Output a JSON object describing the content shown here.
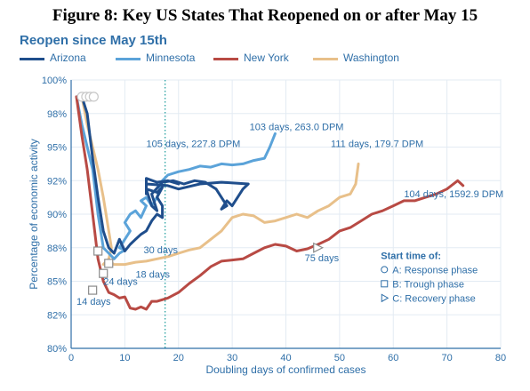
{
  "figure_title": "Figure 8: Key US States That Reopened on or after May 15",
  "chart_data": {
    "type": "line",
    "subtitle": "Reopen since May 15th",
    "xlabel": "Doubling days of confirmed cases",
    "ylabel": "Percentage of economic activity",
    "xlim": [
      0,
      80
    ],
    "ylim": [
      80,
      100
    ],
    "xticks": [
      0,
      10,
      20,
      30,
      40,
      50,
      60,
      70,
      80
    ],
    "yticks": [
      80,
      82,
      85,
      88,
      90,
      92,
      95,
      98,
      100
    ],
    "yticklabels": [
      "80%",
      "82%",
      "85%",
      "88%",
      "90%",
      "92%",
      "95%",
      "98%",
      "100%"
    ],
    "grid": true,
    "reference_line_x": 17.5,
    "series": [
      {
        "name": "Arizona",
        "color": "#1f4e8c",
        "points": [
          [
            2,
            99
          ],
          [
            3,
            98
          ],
          [
            3.5,
            96
          ],
          [
            4,
            94
          ],
          [
            5,
            91
          ],
          [
            6,
            89
          ],
          [
            7,
            88
          ],
          [
            8,
            87.5
          ],
          [
            9,
            88.5
          ],
          [
            10,
            87.7
          ],
          [
            11,
            88.2
          ],
          [
            12,
            88.5
          ],
          [
            13,
            88.8
          ],
          [
            14,
            89
          ],
          [
            15,
            89.6
          ],
          [
            16,
            90
          ],
          [
            17,
            89.8
          ],
          [
            17,
            90.5
          ],
          [
            16,
            91
          ],
          [
            17,
            91.6
          ],
          [
            16,
            91.3
          ],
          [
            14,
            91.5
          ],
          [
            15,
            90.5
          ],
          [
            16,
            90.2
          ],
          [
            15,
            91.2
          ],
          [
            17,
            91.9
          ],
          [
            19,
            92
          ],
          [
            21,
            91.8
          ],
          [
            23,
            92
          ],
          [
            25,
            91.9
          ],
          [
            27,
            91.5
          ],
          [
            28,
            91
          ],
          [
            29,
            90.5
          ],
          [
            28,
            90.3
          ],
          [
            29,
            90.8
          ],
          [
            30,
            90.5
          ],
          [
            31,
            91
          ],
          [
            32,
            91.5
          ],
          [
            33,
            91.8
          ],
          [
            28,
            91.9
          ],
          [
            24,
            91.8
          ],
          [
            20,
            91.5
          ],
          [
            18,
            91.7
          ],
          [
            14,
            91.8
          ],
          [
            14,
            92
          ],
          [
            14,
            91.2
          ],
          [
            14,
            92.2
          ],
          [
            16,
            91.9
          ],
          [
            18,
            92
          ],
          [
            20,
            91.8
          ]
        ],
        "end_label": "105 days, 227.8 DPM",
        "marker_days": "30 days",
        "marker": [
          5,
          87.7
        ]
      },
      {
        "name": "Minnesota",
        "color": "#5ba3d9",
        "points": [
          [
            1,
            99
          ],
          [
            2,
            97
          ],
          [
            3,
            95
          ],
          [
            4,
            93
          ],
          [
            5,
            90
          ],
          [
            6,
            88
          ],
          [
            7,
            87.5
          ],
          [
            8,
            87
          ],
          [
            9,
            87.5
          ],
          [
            10,
            87.8
          ],
          [
            9,
            88
          ],
          [
            10,
            88.5
          ],
          [
            11,
            89
          ],
          [
            10,
            89.5
          ],
          [
            11,
            90
          ],
          [
            12,
            90.2
          ],
          [
            13,
            89.8
          ],
          [
            14,
            90.5
          ],
          [
            13,
            90.8
          ],
          [
            14,
            91
          ],
          [
            15,
            90.5
          ],
          [
            16,
            91
          ],
          [
            17,
            92
          ],
          [
            18,
            92.5
          ],
          [
            20,
            92.8
          ],
          [
            22,
            93
          ],
          [
            24,
            93.3
          ],
          [
            26,
            93.2
          ],
          [
            28,
            93.5
          ],
          [
            30,
            93.4
          ],
          [
            32,
            93.5
          ],
          [
            34,
            93.8
          ],
          [
            36,
            94
          ],
          [
            37,
            95
          ],
          [
            38,
            96.2
          ]
        ],
        "end_label": "103 days, 263.0 DPM",
        "marker_days": "18 days",
        "marker": [
          7,
          86.6
        ]
      },
      {
        "name": "New York",
        "color": "#b84a44",
        "points": [
          [
            1,
            99
          ],
          [
            2,
            96
          ],
          [
            3,
            93
          ],
          [
            4,
            90
          ],
          [
            5,
            87
          ],
          [
            6,
            85
          ],
          [
            7,
            84
          ],
          [
            8,
            83.8
          ],
          [
            9,
            83.5
          ],
          [
            10,
            83.6
          ],
          [
            11,
            82.6
          ],
          [
            12,
            82.5
          ],
          [
            13,
            82.7
          ],
          [
            14,
            82.5
          ],
          [
            15,
            83.2
          ],
          [
            16,
            83.2
          ],
          [
            18,
            83.5
          ],
          [
            20,
            84
          ],
          [
            22,
            84.8
          ],
          [
            24,
            85.5
          ],
          [
            26,
            86.3
          ],
          [
            28,
            86.8
          ],
          [
            30,
            86.9
          ],
          [
            32,
            87
          ],
          [
            34,
            87.5
          ],
          [
            36,
            88
          ],
          [
            38,
            88.2
          ],
          [
            40,
            88.1
          ],
          [
            42,
            87.7
          ],
          [
            44,
            87.9
          ],
          [
            46,
            88.2
          ],
          [
            48,
            88.5
          ],
          [
            50,
            89
          ],
          [
            52,
            89.2
          ],
          [
            54,
            89.6
          ],
          [
            56,
            90
          ],
          [
            58,
            90.2
          ],
          [
            60,
            90.5
          ],
          [
            62,
            90.8
          ],
          [
            64,
            90.8
          ],
          [
            66,
            91
          ],
          [
            68,
            91.2
          ],
          [
            70,
            91.5
          ],
          [
            72,
            92
          ],
          [
            73,
            91.7
          ]
        ],
        "end_label": "104 days, 1592.9 DPM",
        "marker_days": "14 days",
        "marker": [
          4,
          84.2
        ],
        "recovery_days": "75 days",
        "recovery_marker": [
          46,
          88
        ]
      },
      {
        "name": "Washington",
        "color": "#e8c08a",
        "points": [
          [
            2,
            99
          ],
          [
            3,
            97
          ],
          [
            4,
            95
          ],
          [
            5,
            93
          ],
          [
            6,
            91
          ],
          [
            7,
            89
          ],
          [
            7.5,
            88
          ],
          [
            7,
            87
          ],
          [
            6,
            86.5
          ],
          [
            7,
            86.8
          ],
          [
            8,
            86.5
          ],
          [
            10,
            86.5
          ],
          [
            12,
            86.7
          ],
          [
            14,
            86.8
          ],
          [
            16,
            87
          ],
          [
            18,
            87.2
          ],
          [
            20,
            87.5
          ],
          [
            22,
            87.8
          ],
          [
            24,
            88
          ],
          [
            26,
            88.5
          ],
          [
            28,
            89
          ],
          [
            30,
            89.8
          ],
          [
            32,
            90
          ],
          [
            34,
            89.9
          ],
          [
            36,
            89.5
          ],
          [
            38,
            89.6
          ],
          [
            40,
            89.8
          ],
          [
            42,
            90
          ],
          [
            44,
            89.8
          ],
          [
            46,
            90.2
          ],
          [
            48,
            90.5
          ],
          [
            50,
            91
          ],
          [
            52,
            91.2
          ],
          [
            53,
            91.8
          ],
          [
            53.5,
            93.5
          ]
        ],
        "end_label": "111 days, 179.7 DPM",
        "marker_days": "24 days",
        "marker": [
          6,
          85.7
        ]
      }
    ],
    "start_markers": {
      "title": "Start time of:",
      "items": [
        "A: Response phase",
        "B: Trough phase",
        "C: Recovery phase"
      ]
    }
  }
}
